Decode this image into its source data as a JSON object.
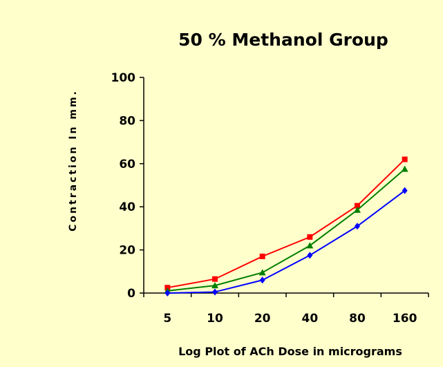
{
  "chart_data": {
    "type": "line",
    "title": "50 % Methanol Group",
    "xlabel": "Log Plot of ACh Dose in micrograms",
    "ylabel": "Contraction In mm.",
    "categories": [
      "5",
      "10",
      "20",
      "40",
      "80",
      "160"
    ],
    "ylim": [
      0,
      100
    ],
    "yticks": [
      0,
      20,
      40,
      60,
      80,
      100
    ],
    "grid": false,
    "legend": "none",
    "series": [
      {
        "color": "#ff0000",
        "marker": "square",
        "values": [
          2.5,
          6.5,
          17,
          26,
          40.5,
          62
        ]
      },
      {
        "color": "#008000",
        "marker": "triangle",
        "values": [
          1,
          3.5,
          9.5,
          22,
          38.5,
          57.5
        ]
      },
      {
        "color": "#0000ff",
        "marker": "diamond",
        "values": [
          0,
          0.5,
          6,
          17.5,
          31,
          47.5
        ]
      }
    ]
  }
}
